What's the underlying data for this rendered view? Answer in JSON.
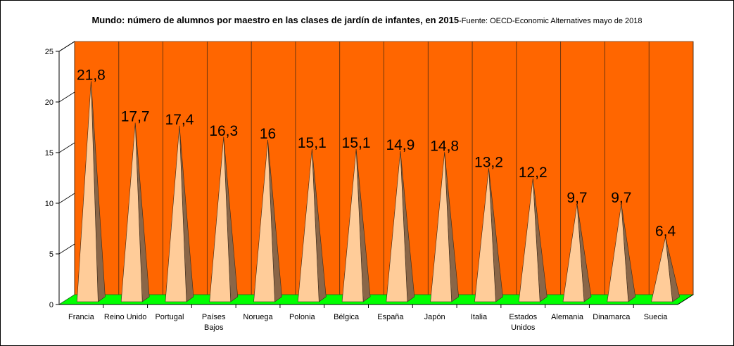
{
  "chart_data": {
    "type": "bar",
    "title": "Mundo: número de alumnos por maestro en las clases de jardín de infantes, en 2015",
    "subtitle": "-Fuente: OECD-Economic Alternatives mayo de 2018",
    "xlabel": "",
    "ylabel": "",
    "ylim": [
      0,
      25
    ],
    "yticks": [
      0,
      5,
      10,
      15,
      20,
      25
    ],
    "grid": true,
    "legend": "none",
    "bar_shape": "pyramid",
    "categories": [
      "Francia",
      "Reino Unido",
      "Portugal",
      "Países Bajos",
      "Noruega",
      "Polonia",
      "Bélgica",
      "España",
      "Japón",
      "Italia",
      "Estados Unidos",
      "Alemania",
      "Dinamarca",
      "Suecia"
    ],
    "values": [
      21.8,
      17.7,
      17.4,
      16.3,
      16,
      15.1,
      15.1,
      14.9,
      14.8,
      13.2,
      12.2,
      9.7,
      9.7,
      6.4
    ],
    "data_labels": [
      "21,8",
      "17,7",
      "17,4",
      "16,3",
      "16",
      "15,1",
      "15,1",
      "14,9",
      "14,8",
      "13,2",
      "12,2",
      "9,7",
      "9,7",
      "6,4"
    ],
    "colors": {
      "wall": "#ff6600",
      "floor": "#00ff00",
      "bar_face": "#ffcc99",
      "bar_side": "#8a6648",
      "axis": "#000000",
      "grid": "#000000"
    }
  }
}
